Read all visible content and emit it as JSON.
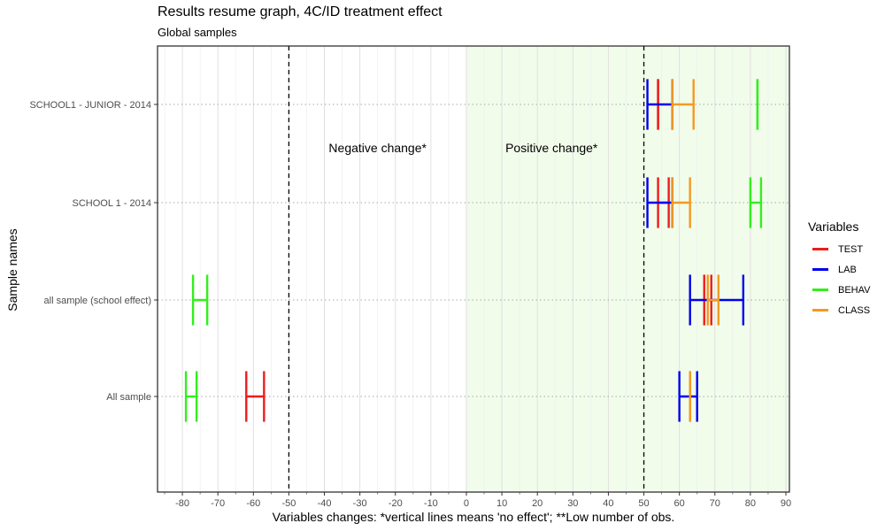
{
  "chart_data": {
    "type": "errorbar",
    "title": "Results resume graph, 4C/ID treatment effect",
    "subtitle": "Global samples",
    "xlabel": "Variables changes: *vertical lines means 'no effect'; **Low number of obs.",
    "ylabel": "Sample names",
    "xlim": [
      -87,
      91
    ],
    "x_ticks": [
      -80,
      -70,
      -60,
      -50,
      -40,
      -30,
      -20,
      -10,
      0,
      10,
      20,
      30,
      40,
      50,
      60,
      70,
      80,
      90
    ],
    "categories": [
      "All sample",
      "all sample (school effect)",
      "SCHOOL 1 - 2014",
      "SCHOOL1 - JUNIOR - 2014"
    ],
    "reference_lines": [
      -50,
      50
    ],
    "shaded_region": [
      0,
      91
    ],
    "annotations": [
      {
        "text": "Negative change*",
        "x": -25,
        "y": 2.53
      },
      {
        "text": "Positive change*",
        "x": 24,
        "y": 2.53
      }
    ],
    "legend_title": "Variables",
    "legend_position": "right",
    "grid": {
      "vertical_minor": true,
      "horizontal": "dotted"
    },
    "series": [
      {
        "name": "TEST",
        "color": "#ee1c1c",
        "intervals": [
          {
            "category": "All sample",
            "low": -62,
            "high": -57
          },
          {
            "category": "all sample (school effect)",
            "low": 67,
            "high": 69
          },
          {
            "category": "SCHOOL 1 - 2014",
            "low": 54,
            "high": 57
          },
          {
            "category": "SCHOOL1 - JUNIOR - 2014",
            "low": 54,
            "high": 54
          }
        ]
      },
      {
        "name": "LAB",
        "color": "#0000ee",
        "intervals": [
          {
            "category": "All sample",
            "low": 60,
            "high": 65
          },
          {
            "category": "all sample (school effect)",
            "low": 63,
            "high": 78
          },
          {
            "category": "SCHOOL 1 - 2014",
            "low": 51,
            "high": 58
          },
          {
            "category": "SCHOOL1 - JUNIOR - 2014",
            "low": 51,
            "high": 58
          }
        ]
      },
      {
        "name": "BEHAV",
        "color": "#33ee1c",
        "intervals": [
          {
            "category": "All sample",
            "low": -79,
            "high": -76
          },
          {
            "category": "all sample (school effect)",
            "low": -77,
            "high": -73
          },
          {
            "category": "SCHOOL 1 - 2014",
            "low": 80,
            "high": 83
          },
          {
            "category": "SCHOOL1 - JUNIOR - 2014",
            "low": 82,
            "high": 82
          }
        ]
      },
      {
        "name": "CLASS",
        "color": "#f39a20",
        "intervals": [
          {
            "category": "All sample",
            "low": 63,
            "high": 63
          },
          {
            "category": "all sample (school effect)",
            "low": 68,
            "high": 71
          },
          {
            "category": "SCHOOL 1 - 2014",
            "low": 58,
            "high": 63
          },
          {
            "category": "SCHOOL1 - JUNIOR - 2014",
            "low": 58,
            "high": 64
          }
        ]
      }
    ]
  }
}
